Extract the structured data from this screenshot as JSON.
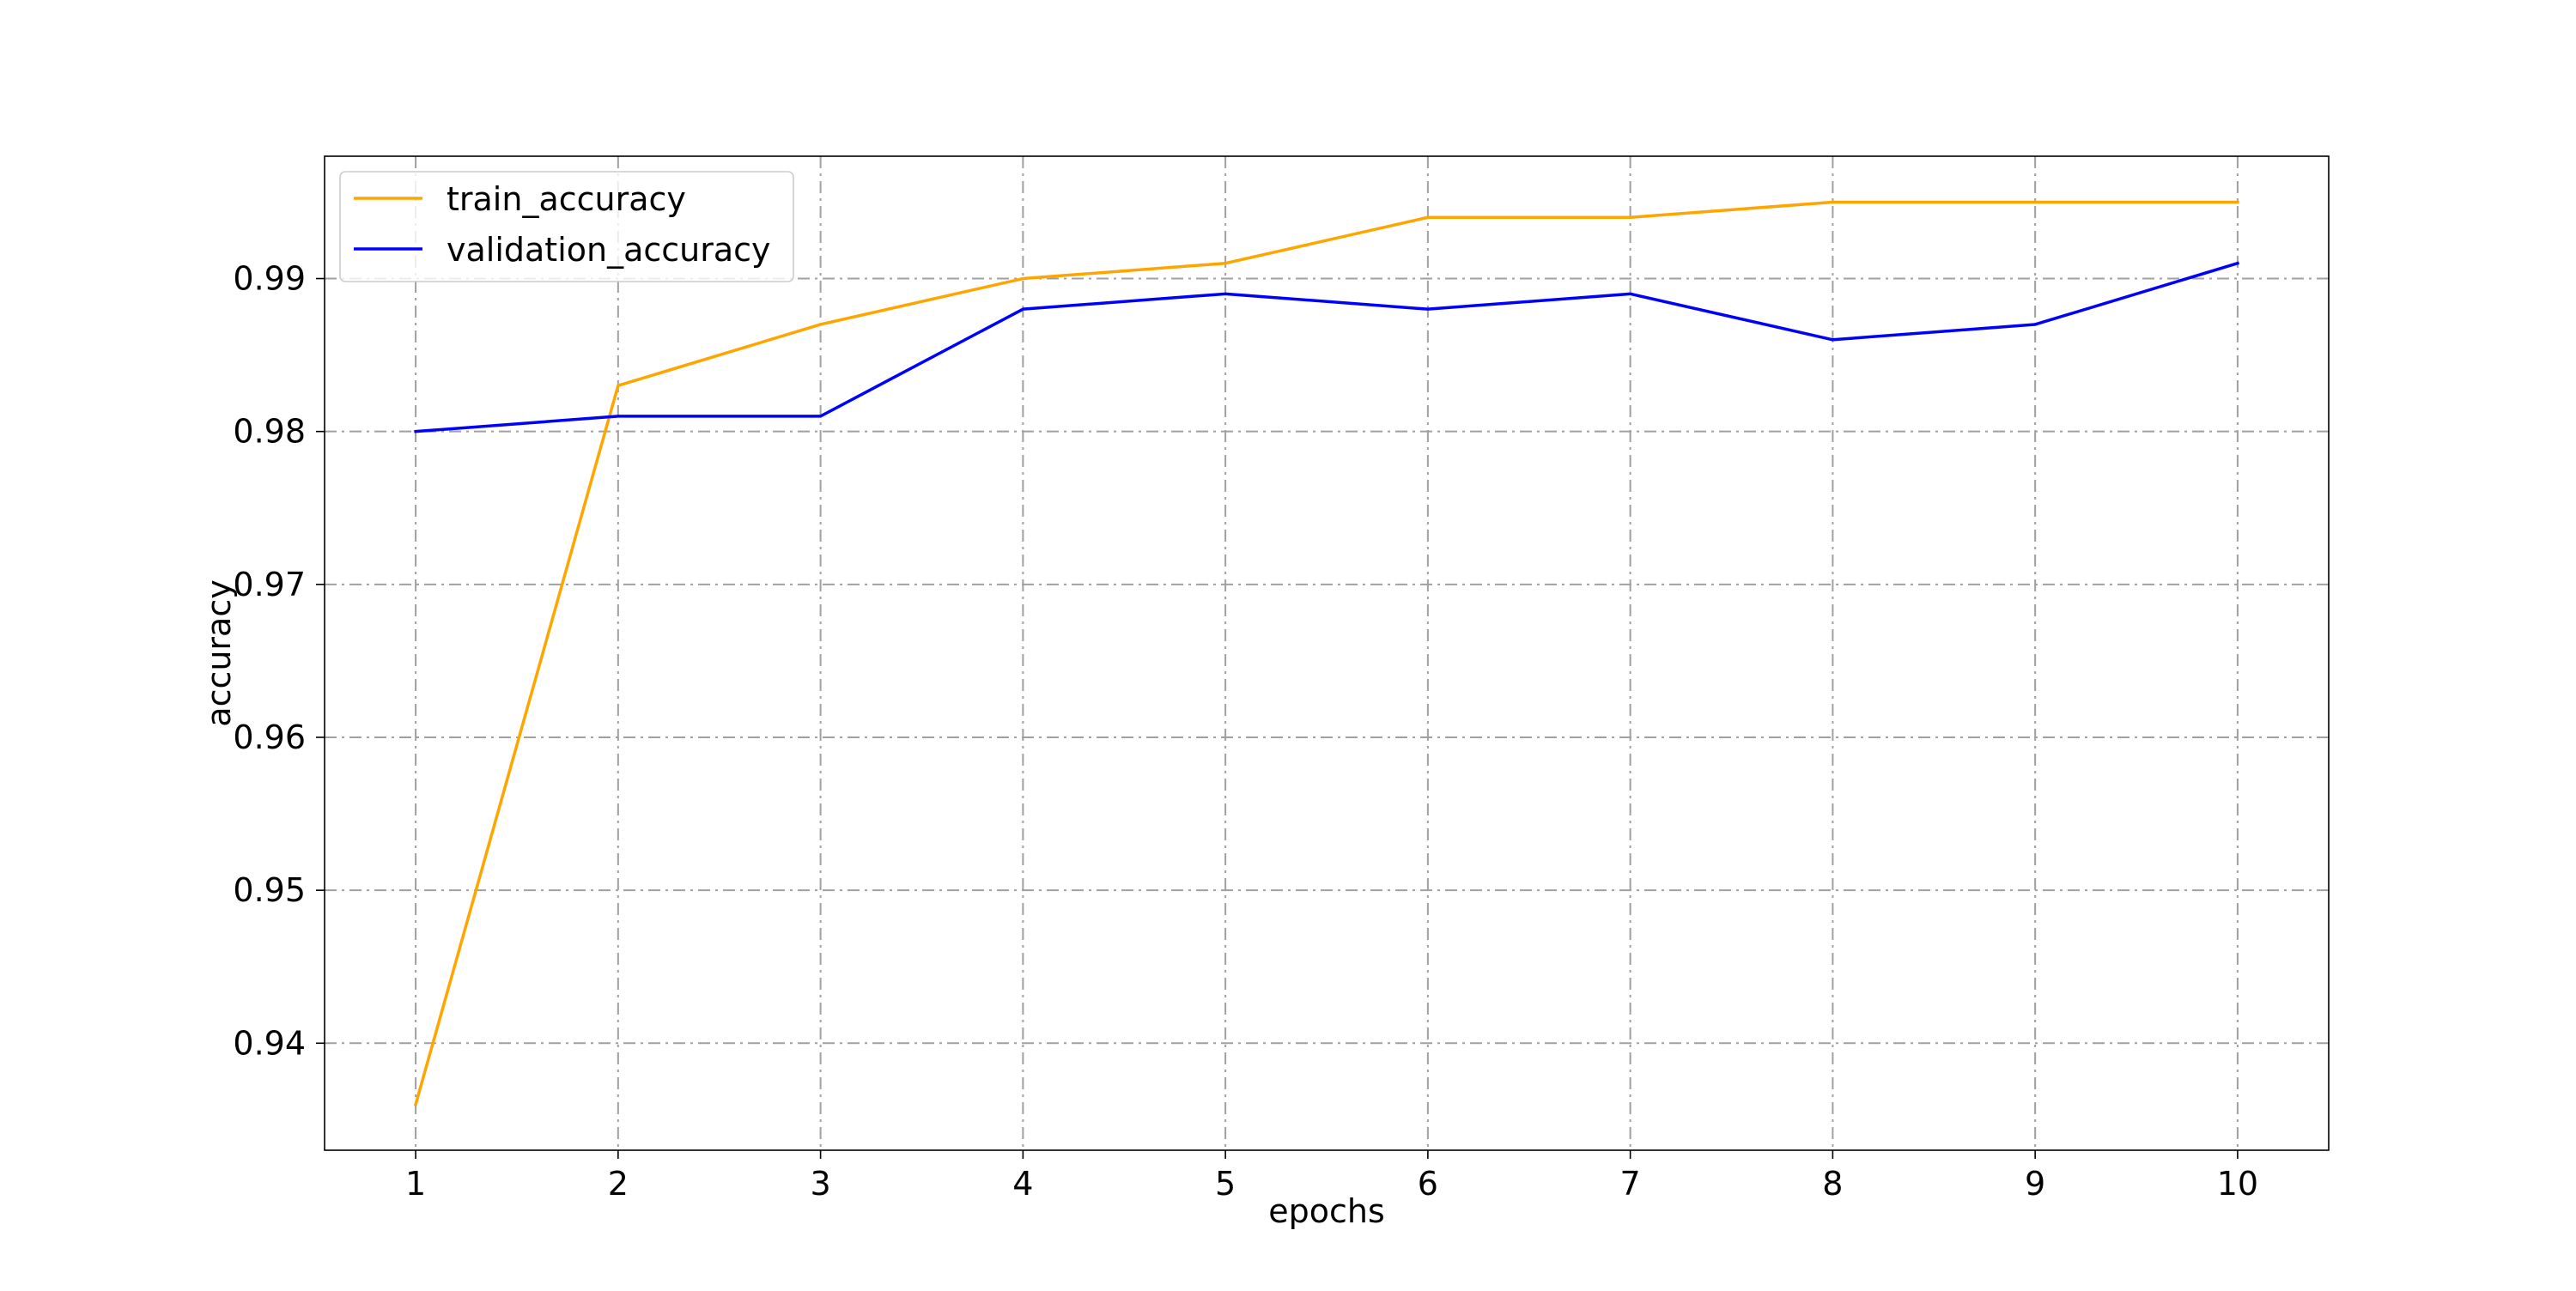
{
  "chart_data": {
    "type": "line",
    "title": "",
    "xlabel": "epochs",
    "ylabel": "accuracy",
    "x": [
      1,
      2,
      3,
      4,
      5,
      6,
      7,
      8,
      9,
      10
    ],
    "xlim": [
      0.55,
      10.45
    ],
    "ylim": [
      0.933,
      0.998
    ],
    "xticks": [
      1,
      2,
      3,
      4,
      5,
      6,
      7,
      8,
      9,
      10
    ],
    "yticks": [
      0.94,
      0.95,
      0.96,
      0.97,
      0.98,
      0.99
    ],
    "ytick_labels": [
      "0.94",
      "0.95",
      "0.96",
      "0.97",
      "0.98",
      "0.99"
    ],
    "grid": true,
    "grid_style": "dash-dot",
    "legend_position": "upper-left",
    "series": [
      {
        "name": "train_accuracy",
        "color": "#FFA500",
        "values": [
          0.936,
          0.983,
          0.987,
          0.99,
          0.991,
          0.994,
          0.994,
          0.995,
          0.995,
          0.995
        ]
      },
      {
        "name": "validation_accuracy",
        "color": "#0000FF",
        "values": [
          0.98,
          0.981,
          0.981,
          0.988,
          0.989,
          0.988,
          0.989,
          0.986,
          0.987,
          0.991
        ]
      }
    ]
  }
}
